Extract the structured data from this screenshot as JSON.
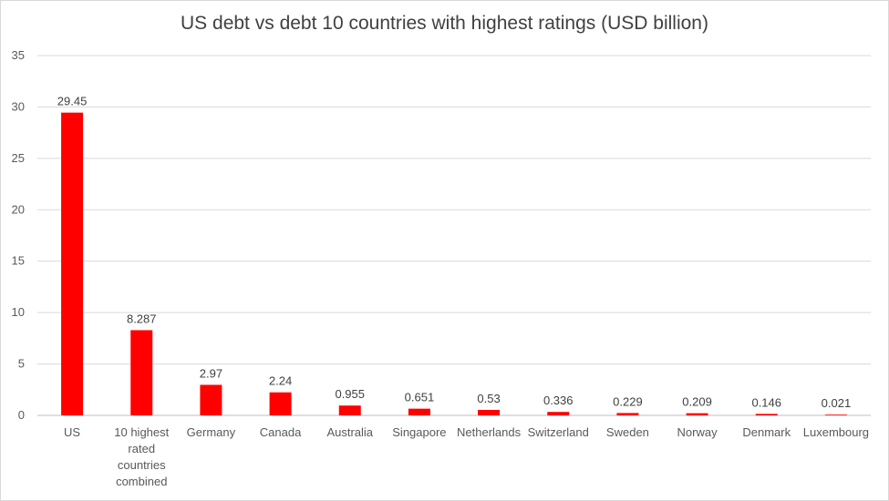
{
  "chart_data": {
    "type": "bar",
    "title": "US debt vs debt 10 countries with highest ratings (USD billion)",
    "xlabel": "",
    "ylabel": "",
    "ylim": [
      0,
      35
    ],
    "yticks": [
      0,
      5,
      10,
      15,
      20,
      25,
      30,
      35
    ],
    "grid": true,
    "legend": "none",
    "bar_color": "#ff0000",
    "categories": [
      [
        "US"
      ],
      [
        "10 highest",
        "rated",
        "countries",
        "combined"
      ],
      [
        "Germany"
      ],
      [
        "Canada"
      ],
      [
        "Australia"
      ],
      [
        "Singapore"
      ],
      [
        "Netherlands"
      ],
      [
        "Switzerland"
      ],
      [
        "Sweden"
      ],
      [
        "Norway"
      ],
      [
        "Denmark"
      ],
      [
        "Luxembourg"
      ]
    ],
    "values": [
      29.45,
      8.287,
      2.97,
      2.24,
      0.955,
      0.651,
      0.53,
      0.336,
      0.229,
      0.209,
      0.146,
      0.021
    ],
    "data_labels": [
      "29.45",
      "8.287",
      "2.97",
      "2.24",
      "0.955",
      "0.651",
      "0.53",
      "0.336",
      "0.229",
      "0.209",
      "0.146",
      "0.021"
    ]
  }
}
